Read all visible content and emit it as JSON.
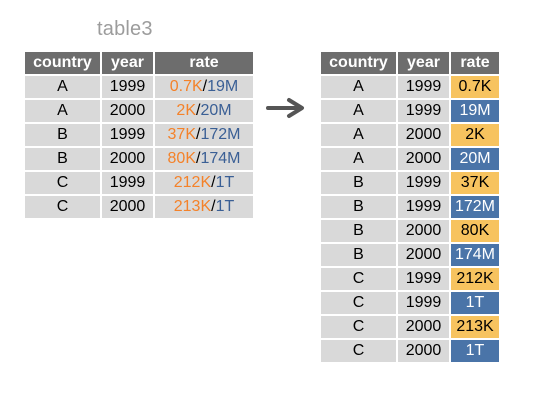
{
  "title": "table3",
  "colors": {
    "header_bg": "#6d6d6d",
    "row_bg": "#d9d9d9",
    "orange": "#f4822a",
    "blue": "#3a5f95",
    "cell_orange": "#f7c35f",
    "cell_blue": "#4a74a8"
  },
  "left_table": {
    "headers": [
      "country",
      "year",
      "rate"
    ],
    "rows": [
      {
        "country": "A",
        "year": "1999",
        "rate_cases": "0.7K",
        "separator": "/",
        "rate_population": "19M"
      },
      {
        "country": "A",
        "year": "2000",
        "rate_cases": "2K",
        "separator": "/",
        "rate_population": "20M"
      },
      {
        "country": "B",
        "year": "1999",
        "rate_cases": "37K",
        "separator": "/",
        "rate_population": "172M"
      },
      {
        "country": "B",
        "year": "2000",
        "rate_cases": "80K",
        "separator": "/",
        "rate_population": "174M"
      },
      {
        "country": "C",
        "year": "1999",
        "rate_cases": "212K",
        "separator": "/",
        "rate_population": "1T"
      },
      {
        "country": "C",
        "year": "2000",
        "rate_cases": "213K",
        "separator": "/",
        "rate_population": "1T"
      }
    ]
  },
  "arrow_icon": "right-arrow-icon",
  "right_table": {
    "headers": [
      "country",
      "year",
      "rate"
    ],
    "rows": [
      {
        "country": "A",
        "year": "1999",
        "rate": "0.7K",
        "kind": "orange"
      },
      {
        "country": "A",
        "year": "1999",
        "rate": "19M",
        "kind": "blue"
      },
      {
        "country": "A",
        "year": "2000",
        "rate": "2K",
        "kind": "orange"
      },
      {
        "country": "A",
        "year": "2000",
        "rate": "20M",
        "kind": "blue"
      },
      {
        "country": "B",
        "year": "1999",
        "rate": "37K",
        "kind": "orange"
      },
      {
        "country": "B",
        "year": "1999",
        "rate": "172M",
        "kind": "blue"
      },
      {
        "country": "B",
        "year": "2000",
        "rate": "80K",
        "kind": "orange"
      },
      {
        "country": "B",
        "year": "2000",
        "rate": "174M",
        "kind": "blue"
      },
      {
        "country": "C",
        "year": "1999",
        "rate": "212K",
        "kind": "orange"
      },
      {
        "country": "C",
        "year": "1999",
        "rate": "1T",
        "kind": "blue"
      },
      {
        "country": "C",
        "year": "2000",
        "rate": "213K",
        "kind": "orange"
      },
      {
        "country": "C",
        "year": "2000",
        "rate": "1T",
        "kind": "blue"
      }
    ]
  }
}
